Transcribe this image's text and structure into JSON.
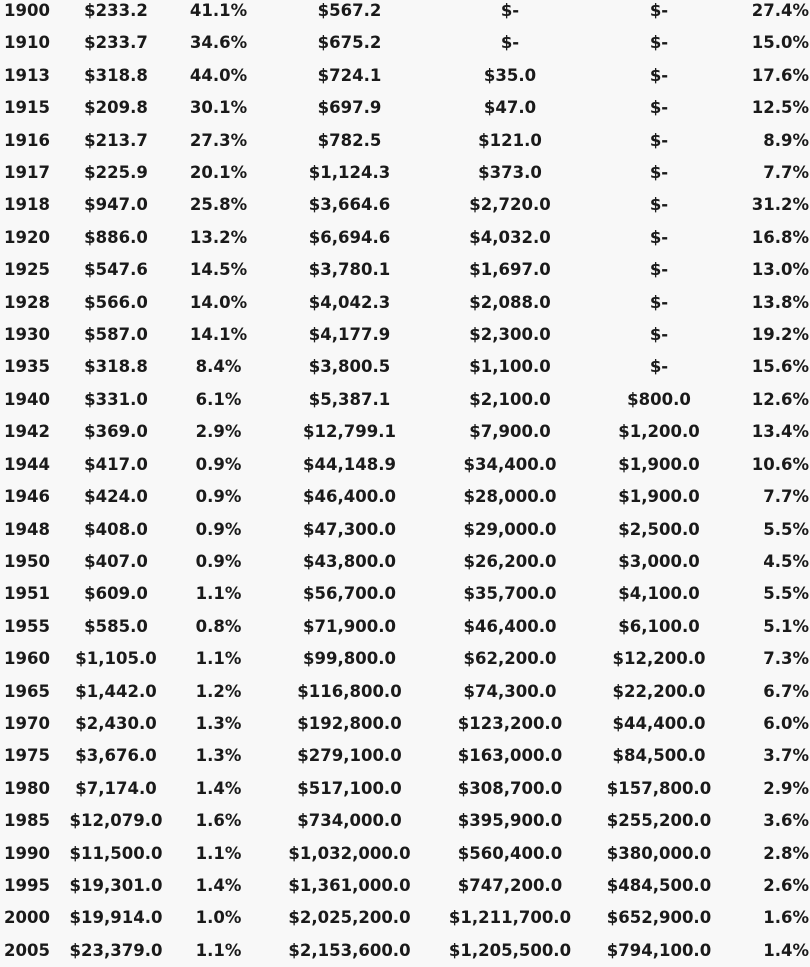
{
  "rows": [
    [
      "1900",
      "$233.2",
      "41.1%",
      "$567.2",
      "$-",
      "$-",
      "27.4%"
    ],
    [
      "1910",
      "$233.7",
      "34.6%",
      "$675.2",
      "$-",
      "$-",
      "15.0%"
    ],
    [
      "1913",
      "$318.8",
      "44.0%",
      "$724.1",
      "$35.0",
      "$-",
      "17.6%"
    ],
    [
      "1915",
      "$209.8",
      "30.1%",
      "$697.9",
      "$47.0",
      "$-",
      "12.5%"
    ],
    [
      "1916",
      "$213.7",
      "27.3%",
      "$782.5",
      "$121.0",
      "$-",
      "8.9%"
    ],
    [
      "1917",
      "$225.9",
      "20.1%",
      "$1,124.3",
      "$373.0",
      "$-",
      "7.7%"
    ],
    [
      "1918",
      "$947.0",
      "25.8%",
      "$3,664.6",
      "$2,720.0",
      "$-",
      "31.2%"
    ],
    [
      "1920",
      "$886.0",
      "13.2%",
      "$6,694.6",
      "$4,032.0",
      "$-",
      "16.8%"
    ],
    [
      "1925",
      "$547.6",
      "14.5%",
      "$3,780.1",
      "$1,697.0",
      "$-",
      "13.0%"
    ],
    [
      "1928",
      "$566.0",
      "14.0%",
      "$4,042.3",
      "$2,088.0",
      "$-",
      "13.8%"
    ],
    [
      "1930",
      "$587.0",
      "14.1%",
      "$4,177.9",
      "$2,300.0",
      "$-",
      "19.2%"
    ],
    [
      "1935",
      "$318.8",
      "8.4%",
      "$3,800.5",
      "$1,100.0",
      "$-",
      "15.6%"
    ],
    [
      "1940",
      "$331.0",
      "6.1%",
      "$5,387.1",
      "$2,100.0",
      "$800.0",
      "12.6%"
    ],
    [
      "1942",
      "$369.0",
      "2.9%",
      "$12,799.1",
      "$7,900.0",
      "$1,200.0",
      "13.4%"
    ],
    [
      "1944",
      "$417.0",
      "0.9%",
      "$44,148.9",
      "$34,400.0",
      "$1,900.0",
      "10.6%"
    ],
    [
      "1946",
      "$424.0",
      "0.9%",
      "$46,400.0",
      "$28,000.0",
      "$1,900.0",
      "7.7%"
    ],
    [
      "1948",
      "$408.0",
      "0.9%",
      "$47,300.0",
      "$29,000.0",
      "$2,500.0",
      "5.5%"
    ],
    [
      "1950",
      "$407.0",
      "0.9%",
      "$43,800.0",
      "$26,200.0",
      "$3,000.0",
      "4.5%"
    ],
    [
      "1951",
      "$609.0",
      "1.1%",
      "$56,700.0",
      "$35,700.0",
      "$4,100.0",
      "5.5%"
    ],
    [
      "1955",
      "$585.0",
      "0.8%",
      "$71,900.0",
      "$46,400.0",
      "$6,100.0",
      "5.1%"
    ],
    [
      "1960",
      "$1,105.0",
      "1.1%",
      "$99,800.0",
      "$62,200.0",
      "$12,200.0",
      "7.3%"
    ],
    [
      "1965",
      "$1,442.0",
      "1.2%",
      "$116,800.0",
      "$74,300.0",
      "$22,200.0",
      "6.7%"
    ],
    [
      "1970",
      "$2,430.0",
      "1.3%",
      "$192,800.0",
      "$123,200.0",
      "$44,400.0",
      "6.0%"
    ],
    [
      "1975",
      "$3,676.0",
      "1.3%",
      "$279,100.0",
      "$163,000.0",
      "$84,500.0",
      "3.7%"
    ],
    [
      "1980",
      "$7,174.0",
      "1.4%",
      "$517,100.0",
      "$308,700.0",
      "$157,800.0",
      "2.9%"
    ],
    [
      "1985",
      "$12,079.0",
      "1.6%",
      "$734,000.0",
      "$395,900.0",
      "$255,200.0",
      "3.6%"
    ],
    [
      "1990",
      "$11,500.0",
      "1.1%",
      "$1,032,000.0",
      "$560,400.0",
      "$380,000.0",
      "2.8%"
    ],
    [
      "1995",
      "$19,301.0",
      "1.4%",
      "$1,361,000.0",
      "$747,200.0",
      "$484,500.0",
      "2.6%"
    ],
    [
      "2000",
      "$19,914.0",
      "1.0%",
      "$2,025,200.0",
      "$1,211,700.0",
      "$652,900.0",
      "1.6%"
    ],
    [
      "2005",
      "$23,379.0",
      "1.1%",
      "$2,153,600.0",
      "$1,205,500.0",
      "$794,100.0",
      "1.4%"
    ]
  ]
}
